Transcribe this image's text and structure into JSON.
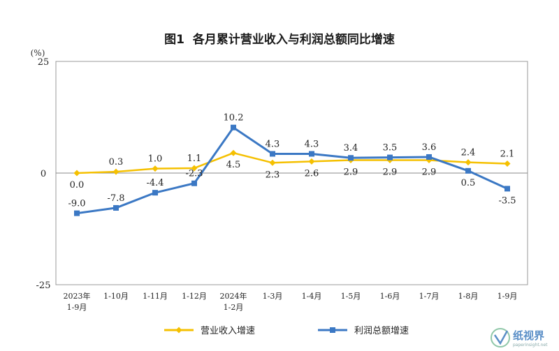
{
  "chart_data": {
    "type": "line",
    "title": "图1  各月累计营业收入与利润总额同比增速",
    "y_unit": "(%)",
    "ylim": [
      -25,
      25
    ],
    "y_ticks": [
      25,
      0,
      -25
    ],
    "grid": false,
    "legend_position": "bottom",
    "categories": [
      [
        "2023年",
        "1-9月"
      ],
      [
        "1-10月"
      ],
      [
        "1-11月"
      ],
      [
        "1-12月"
      ],
      [
        "2024年",
        "1-2月"
      ],
      [
        "1-3月"
      ],
      [
        "1-4月"
      ],
      [
        "1-5月"
      ],
      [
        "1-6月"
      ],
      [
        "1-7月"
      ],
      [
        "1-8月"
      ],
      [
        "1-9月"
      ]
    ],
    "series": [
      {
        "name": "营业收入增速",
        "color": "#f5c000",
        "marker": "diamond",
        "values": [
          0.0,
          0.3,
          1.0,
          1.1,
          4.5,
          2.3,
          2.6,
          2.9,
          2.9,
          2.9,
          2.4,
          2.1
        ],
        "labels": [
          "0.0",
          "0.3",
          "1.0",
          "1.1",
          "4.5",
          "2.3",
          "2.6",
          "2.9",
          "2.9",
          "2.9",
          "2.4",
          "2.1"
        ],
        "label_pos": [
          "below",
          "above",
          "above",
          "above",
          "below",
          "below",
          "below",
          "below",
          "below",
          "below",
          "above",
          "above"
        ]
      },
      {
        "name": "利润总额增速",
        "color": "#3b78c4",
        "marker": "square",
        "values": [
          -9.0,
          -7.8,
          -4.4,
          -2.3,
          10.2,
          4.3,
          4.3,
          3.4,
          3.5,
          3.6,
          0.5,
          -3.5
        ],
        "labels": [
          "-9.0",
          "-7.8",
          "-4.4",
          "-2.3",
          "10.2",
          "4.3",
          "4.3",
          "3.4",
          "3.5",
          "3.6",
          "0.5",
          "-3.5"
        ],
        "label_pos": [
          "above",
          "above",
          "above",
          "above",
          "above",
          "above",
          "above",
          "above",
          "above",
          "above",
          "below",
          "below"
        ]
      }
    ]
  },
  "watermark": {
    "text": "纸视界",
    "sub": "paperinsight.net"
  }
}
